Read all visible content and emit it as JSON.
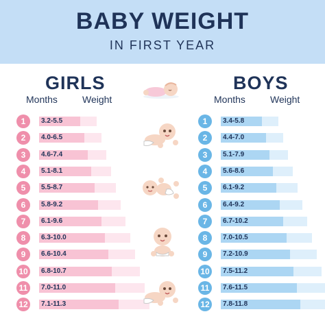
{
  "header": {
    "title": "BABY WEIGHT",
    "subtitle": "IN FIRST YEAR"
  },
  "girls": {
    "title": "GIRLS",
    "months_label": "Months",
    "weight_label": "Weight",
    "rows": [
      {
        "month": "1",
        "weight": "3.2-5.5"
      },
      {
        "month": "2",
        "weight": "4.0-6.5"
      },
      {
        "month": "3",
        "weight": "4.6-7.4"
      },
      {
        "month": "4",
        "weight": "5.1-8.1"
      },
      {
        "month": "5",
        "weight": "5.5-8.7"
      },
      {
        "month": "6",
        "weight": "5.8-9.2"
      },
      {
        "month": "7",
        "weight": "6.1-9.6"
      },
      {
        "month": "8",
        "weight": "6.3-10.0"
      },
      {
        "month": "9",
        "weight": "6.6-10.4"
      },
      {
        "month": "10",
        "weight": "6.8-10.7"
      },
      {
        "month": "11",
        "weight": "7.0-11.0"
      },
      {
        "month": "12",
        "weight": "7.1-11.3"
      }
    ]
  },
  "boys": {
    "title": "BOYS",
    "months_label": "Months",
    "weight_label": "Weight",
    "rows": [
      {
        "month": "1",
        "weight": "3.4-5.8"
      },
      {
        "month": "2",
        "weight": "4.4-7.0"
      },
      {
        "month": "3",
        "weight": "5.1-7.9"
      },
      {
        "month": "4",
        "weight": "5.6-8.6"
      },
      {
        "month": "5",
        "weight": "6.1-9.2"
      },
      {
        "month": "6",
        "weight": "6.4-9.2"
      },
      {
        "month": "7",
        "weight": "6.7-10.2"
      },
      {
        "month": "8",
        "weight": "7.0-10.5"
      },
      {
        "month": "9",
        "weight": "7.2-10.9"
      },
      {
        "month": "10",
        "weight": "7.5-11.2"
      },
      {
        "month": "11",
        "weight": "7.6-11.5"
      },
      {
        "month": "12",
        "weight": "7.8-11.8"
      }
    ]
  },
  "colors": {
    "header_bg": "#c4def6",
    "title_text": "#1f3358",
    "girls_accent": "#ef8fab",
    "boys_accent": "#6ab6e6"
  },
  "icons": [
    "sleeping-baby-icon",
    "crawling-baby-icon",
    "lying-baby-icon",
    "sitting-baby-icon",
    "crawling-baby-icon"
  ]
}
